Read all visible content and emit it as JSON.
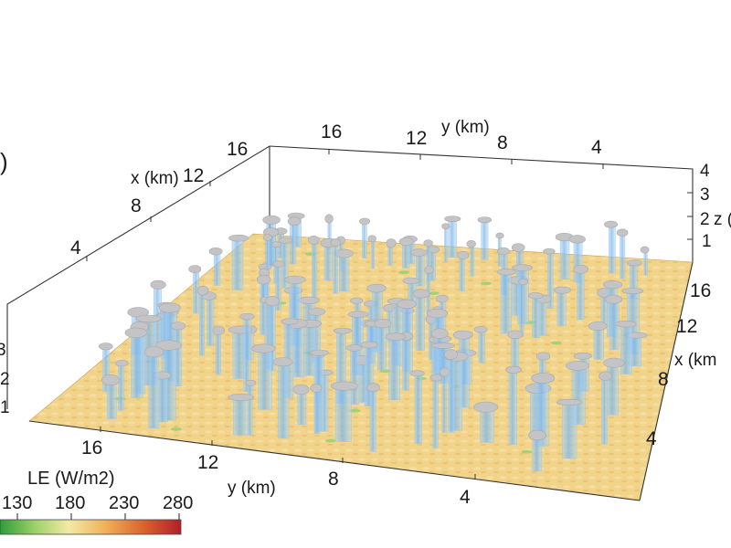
{
  "panel_marker": ")",
  "axes": {
    "x_back": {
      "label": "x (km)",
      "ticks": [
        "4",
        "8",
        "12",
        "16"
      ]
    },
    "y_top": {
      "label": "y (km)",
      "ticks": [
        "16",
        "12",
        "8",
        "4"
      ]
    },
    "z_right": {
      "label": "z (",
      "ticks": [
        "1",
        "2",
        "3",
        "4"
      ]
    },
    "x_right": {
      "label": "x (km",
      "ticks": [
        "4",
        "8",
        "12",
        "16"
      ]
    },
    "y_front": {
      "label": "y (km)",
      "ticks": [
        "16",
        "12",
        "8",
        "4"
      ]
    },
    "z_left": {
      "ticks": [
        "1",
        "2",
        "3"
      ]
    }
  },
  "colorbar": {
    "label": "LE (W/m2)",
    "ticks": [
      "130",
      "180",
      "230",
      "280"
    ],
    "colors": [
      "#2e9d3a",
      "#9fd36a",
      "#f2e9a6",
      "#f0b25a",
      "#d8612e",
      "#b21e2a"
    ]
  },
  "colors": {
    "surface": "#f1d48a",
    "cloud_column": "#8ec2ee",
    "cloud_top": "#c4c4c6",
    "box_line": "#333333"
  }
}
